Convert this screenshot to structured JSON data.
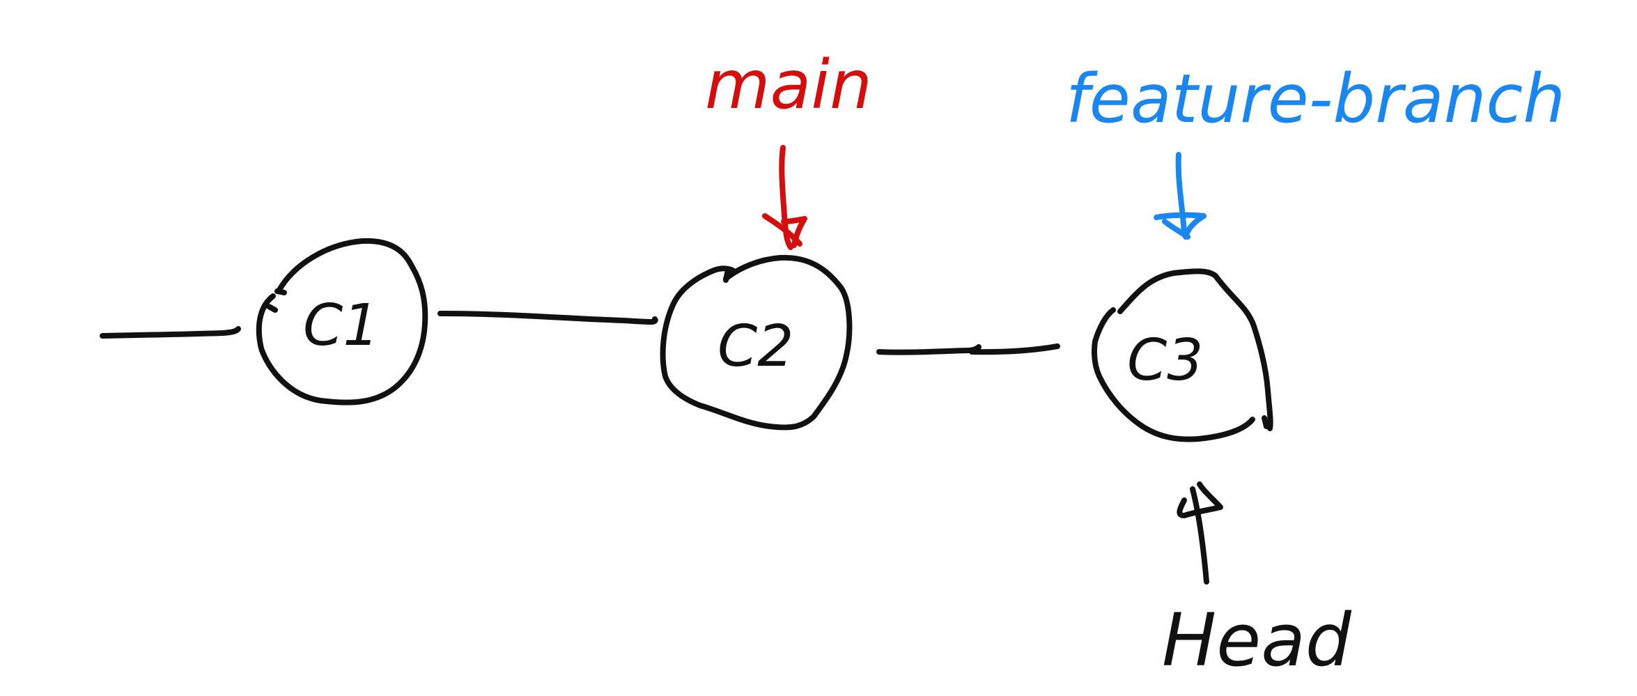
{
  "commits": [
    {
      "id": "c1",
      "label": "C1",
      "sub": "1"
    },
    {
      "id": "c2",
      "label": "C2",
      "sub": "2"
    },
    {
      "id": "c3",
      "label": "C3",
      "sub": "3"
    }
  ],
  "pointers": {
    "main": {
      "label": "main",
      "color": "#d40d0d",
      "target": "c2"
    },
    "feature_branch": {
      "label": "feature-branch",
      "color": "#1a86f0",
      "target": "c3"
    },
    "head": {
      "label": "Head",
      "color": "#111111",
      "target": "c3"
    }
  },
  "colors": {
    "ink": "#111111",
    "main": "#d40d0d",
    "feature": "#1a86f0",
    "background": "#ffffff"
  }
}
